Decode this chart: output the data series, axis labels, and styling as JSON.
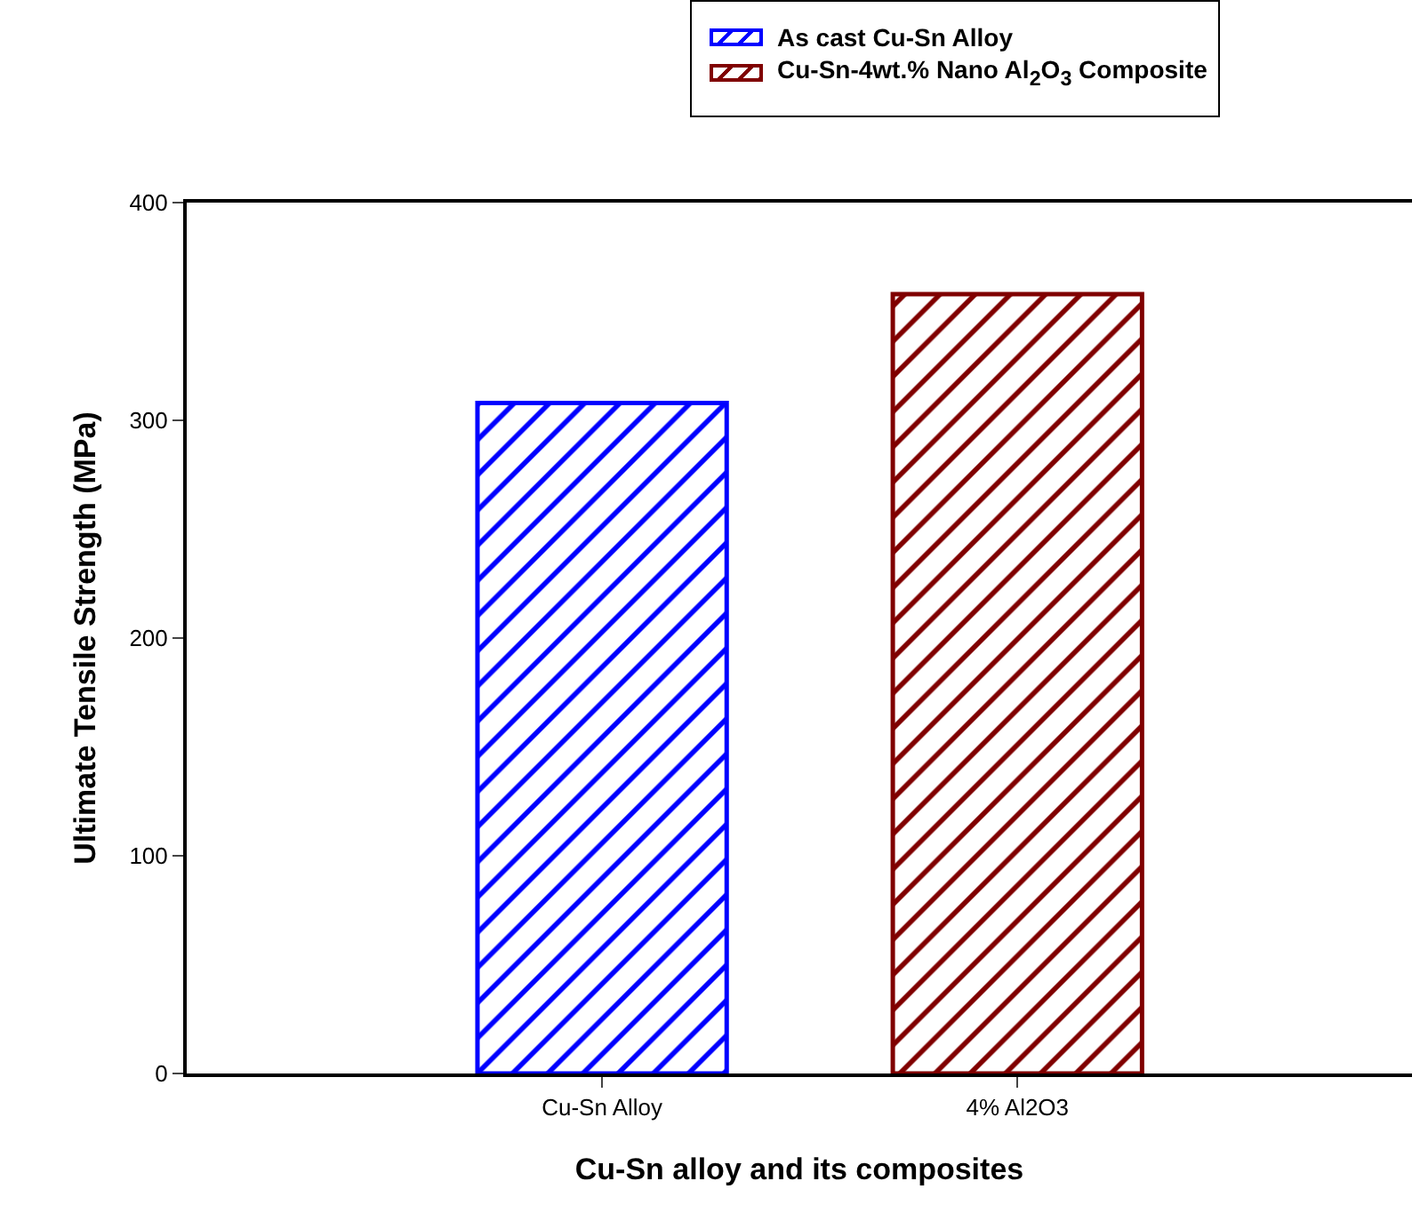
{
  "chart_data": {
    "type": "bar",
    "xlabel": "Cu-Sn alloy and its composites",
    "ylabel": "Ultimate Tensile Strength (MPa)",
    "categories": [
      "Cu-Sn Alloy",
      "4% Al2O3"
    ],
    "series": [
      {
        "name": "As cast Cu-Sn Alloy",
        "color": "#0000ff",
        "values": [
          308,
          null
        ]
      },
      {
        "name": "Cu-Sn-4wt.% Nano Al$_{2}$O$_{3}$ Composite",
        "color": "#800000",
        "values": [
          null,
          358
        ]
      }
    ],
    "ylim": [
      0,
      400
    ],
    "yticks": [
      0,
      100,
      200,
      300,
      400
    ],
    "grid": false,
    "legend": "top right"
  }
}
